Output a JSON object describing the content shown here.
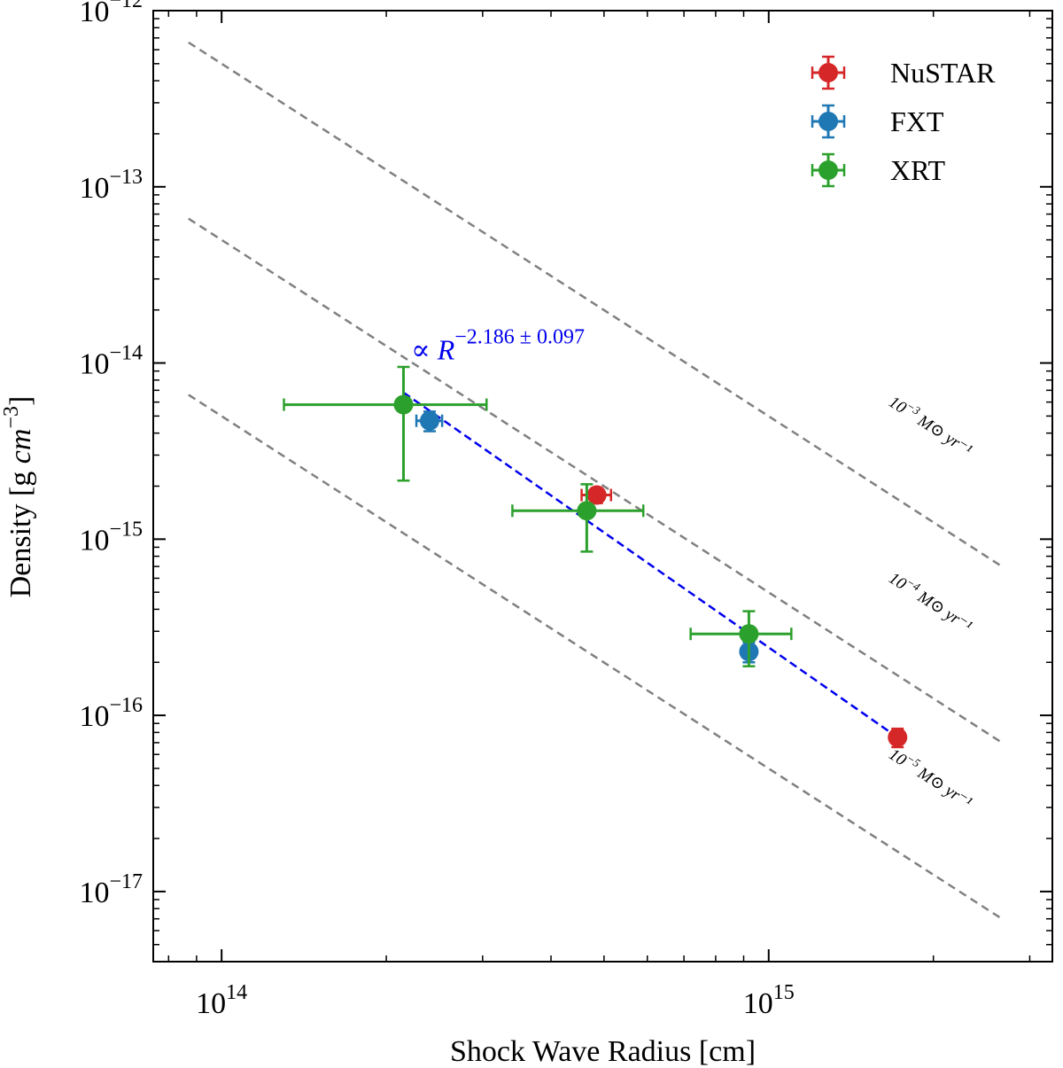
{
  "chart_data": {
    "type": "scatter",
    "xlabel": "Shock Wave Radius [cm]",
    "ylabel": "Density [g cm⁻³]",
    "x_scale": "log",
    "y_scale": "log",
    "xlim": [
      75000000000000.0,
      3300000000000000.0
    ],
    "ylim": [
      4e-18,
      1e-12
    ],
    "x_major_ticks": [
      {
        "value": 100000000000000.0,
        "base": "10",
        "exp": "14"
      },
      {
        "value": 1000000000000000.0,
        "base": "10",
        "exp": "15"
      }
    ],
    "y_major_ticks": [
      {
        "value": 1e-12,
        "base": "10",
        "exp": "−12"
      },
      {
        "value": 1e-13,
        "base": "10",
        "exp": "−13"
      },
      {
        "value": 1e-14,
        "base": "10",
        "exp": "−14"
      },
      {
        "value": 1e-15,
        "base": "10",
        "exp": "−15"
      },
      {
        "value": 1e-16,
        "base": "10",
        "exp": "−16"
      },
      {
        "value": 1e-17,
        "base": "10",
        "exp": "−17"
      }
    ],
    "legend_position": "top-right",
    "series": [
      {
        "name": "NuSTAR",
        "color": "#d62728",
        "points": [
          {
            "x": 485000000000000.0,
            "y": 1.78e-15,
            "xerr": [
              455000000000000.0,
              515000000000000.0
            ],
            "yerr": [
              1.6e-15,
              1.95e-15
            ]
          },
          {
            "x": 1720000000000000.0,
            "y": 7.5e-17,
            "xerr": null,
            "yerr": [
              6.6e-17,
              8.4e-17
            ]
          }
        ]
      },
      {
        "name": "FXT",
        "color": "#1f77b4",
        "points": [
          {
            "x": 240000000000000.0,
            "y": 4.7e-15,
            "xerr": [
              227000000000000.0,
              253000000000000.0
            ],
            "yerr": [
              4.1e-15,
              5.3e-15
            ]
          },
          {
            "x": 920000000000000.0,
            "y": 2.3e-16,
            "xerr": null,
            "yerr": [
              2e-16,
              2.6e-16
            ]
          }
        ]
      },
      {
        "name": "XRT",
        "color": "#2ca02c",
        "points": [
          {
            "x": 215000000000000.0,
            "y": 5.8e-15,
            "xerr": [
              130000000000000.0,
              305000000000000.0
            ],
            "yerr": [
              2.15e-15,
              9.5e-15
            ]
          },
          {
            "x": 465000000000000.0,
            "y": 1.45e-15,
            "xerr": [
              340000000000000.0,
              590000000000000.0
            ],
            "yerr": [
              8.5e-16,
              2.05e-15
            ]
          },
          {
            "x": 920000000000000.0,
            "y": 2.9e-16,
            "xerr": [
              720000000000000.0,
              1100000000000000.0
            ],
            "yerr": [
              1.9e-16,
              3.9e-16
            ]
          }
        ]
      }
    ],
    "fit_line": {
      "color": "#0000ee",
      "x": [
        215000000000000.0,
        1720000000000000.0
      ],
      "y": [
        6.8e-15,
        7.5e-17
      ],
      "label": "∝ R",
      "label_exponent": "−2.186 ± 0.097",
      "label_x": 222000000000000.0,
      "label_y": 1.05e-14
    },
    "reference_lines": [
      {
        "label_base": "10",
        "label_exp": "−3",
        "label_unit": " M⊙ yr⁻¹",
        "x": [
          87000000000000.0,
          2650000000000000.0
        ],
        "y": [
          6.6e-13,
          7.1e-16
        ],
        "label_x": 1650000000000000.0,
        "label_y": 5.8e-15
      },
      {
        "label_base": "10",
        "label_exp": "−4",
        "label_unit": " M⊙ yr⁻¹",
        "x": [
          87000000000000.0,
          2650000000000000.0
        ],
        "y": [
          6.6e-14,
          7.1e-17
        ],
        "label_x": 1650000000000000.0,
        "label_y": 5.8e-16
      },
      {
        "label_base": "10",
        "label_exp": "−5",
        "label_unit": " M⊙ yr⁻¹",
        "x": [
          87000000000000.0,
          2650000000000000.0
        ],
        "y": [
          6.6e-15,
          7.1e-18
        ],
        "label_x": 1650000000000000.0,
        "label_y": 5.8e-17
      }
    ],
    "reference_color": "#808080"
  }
}
